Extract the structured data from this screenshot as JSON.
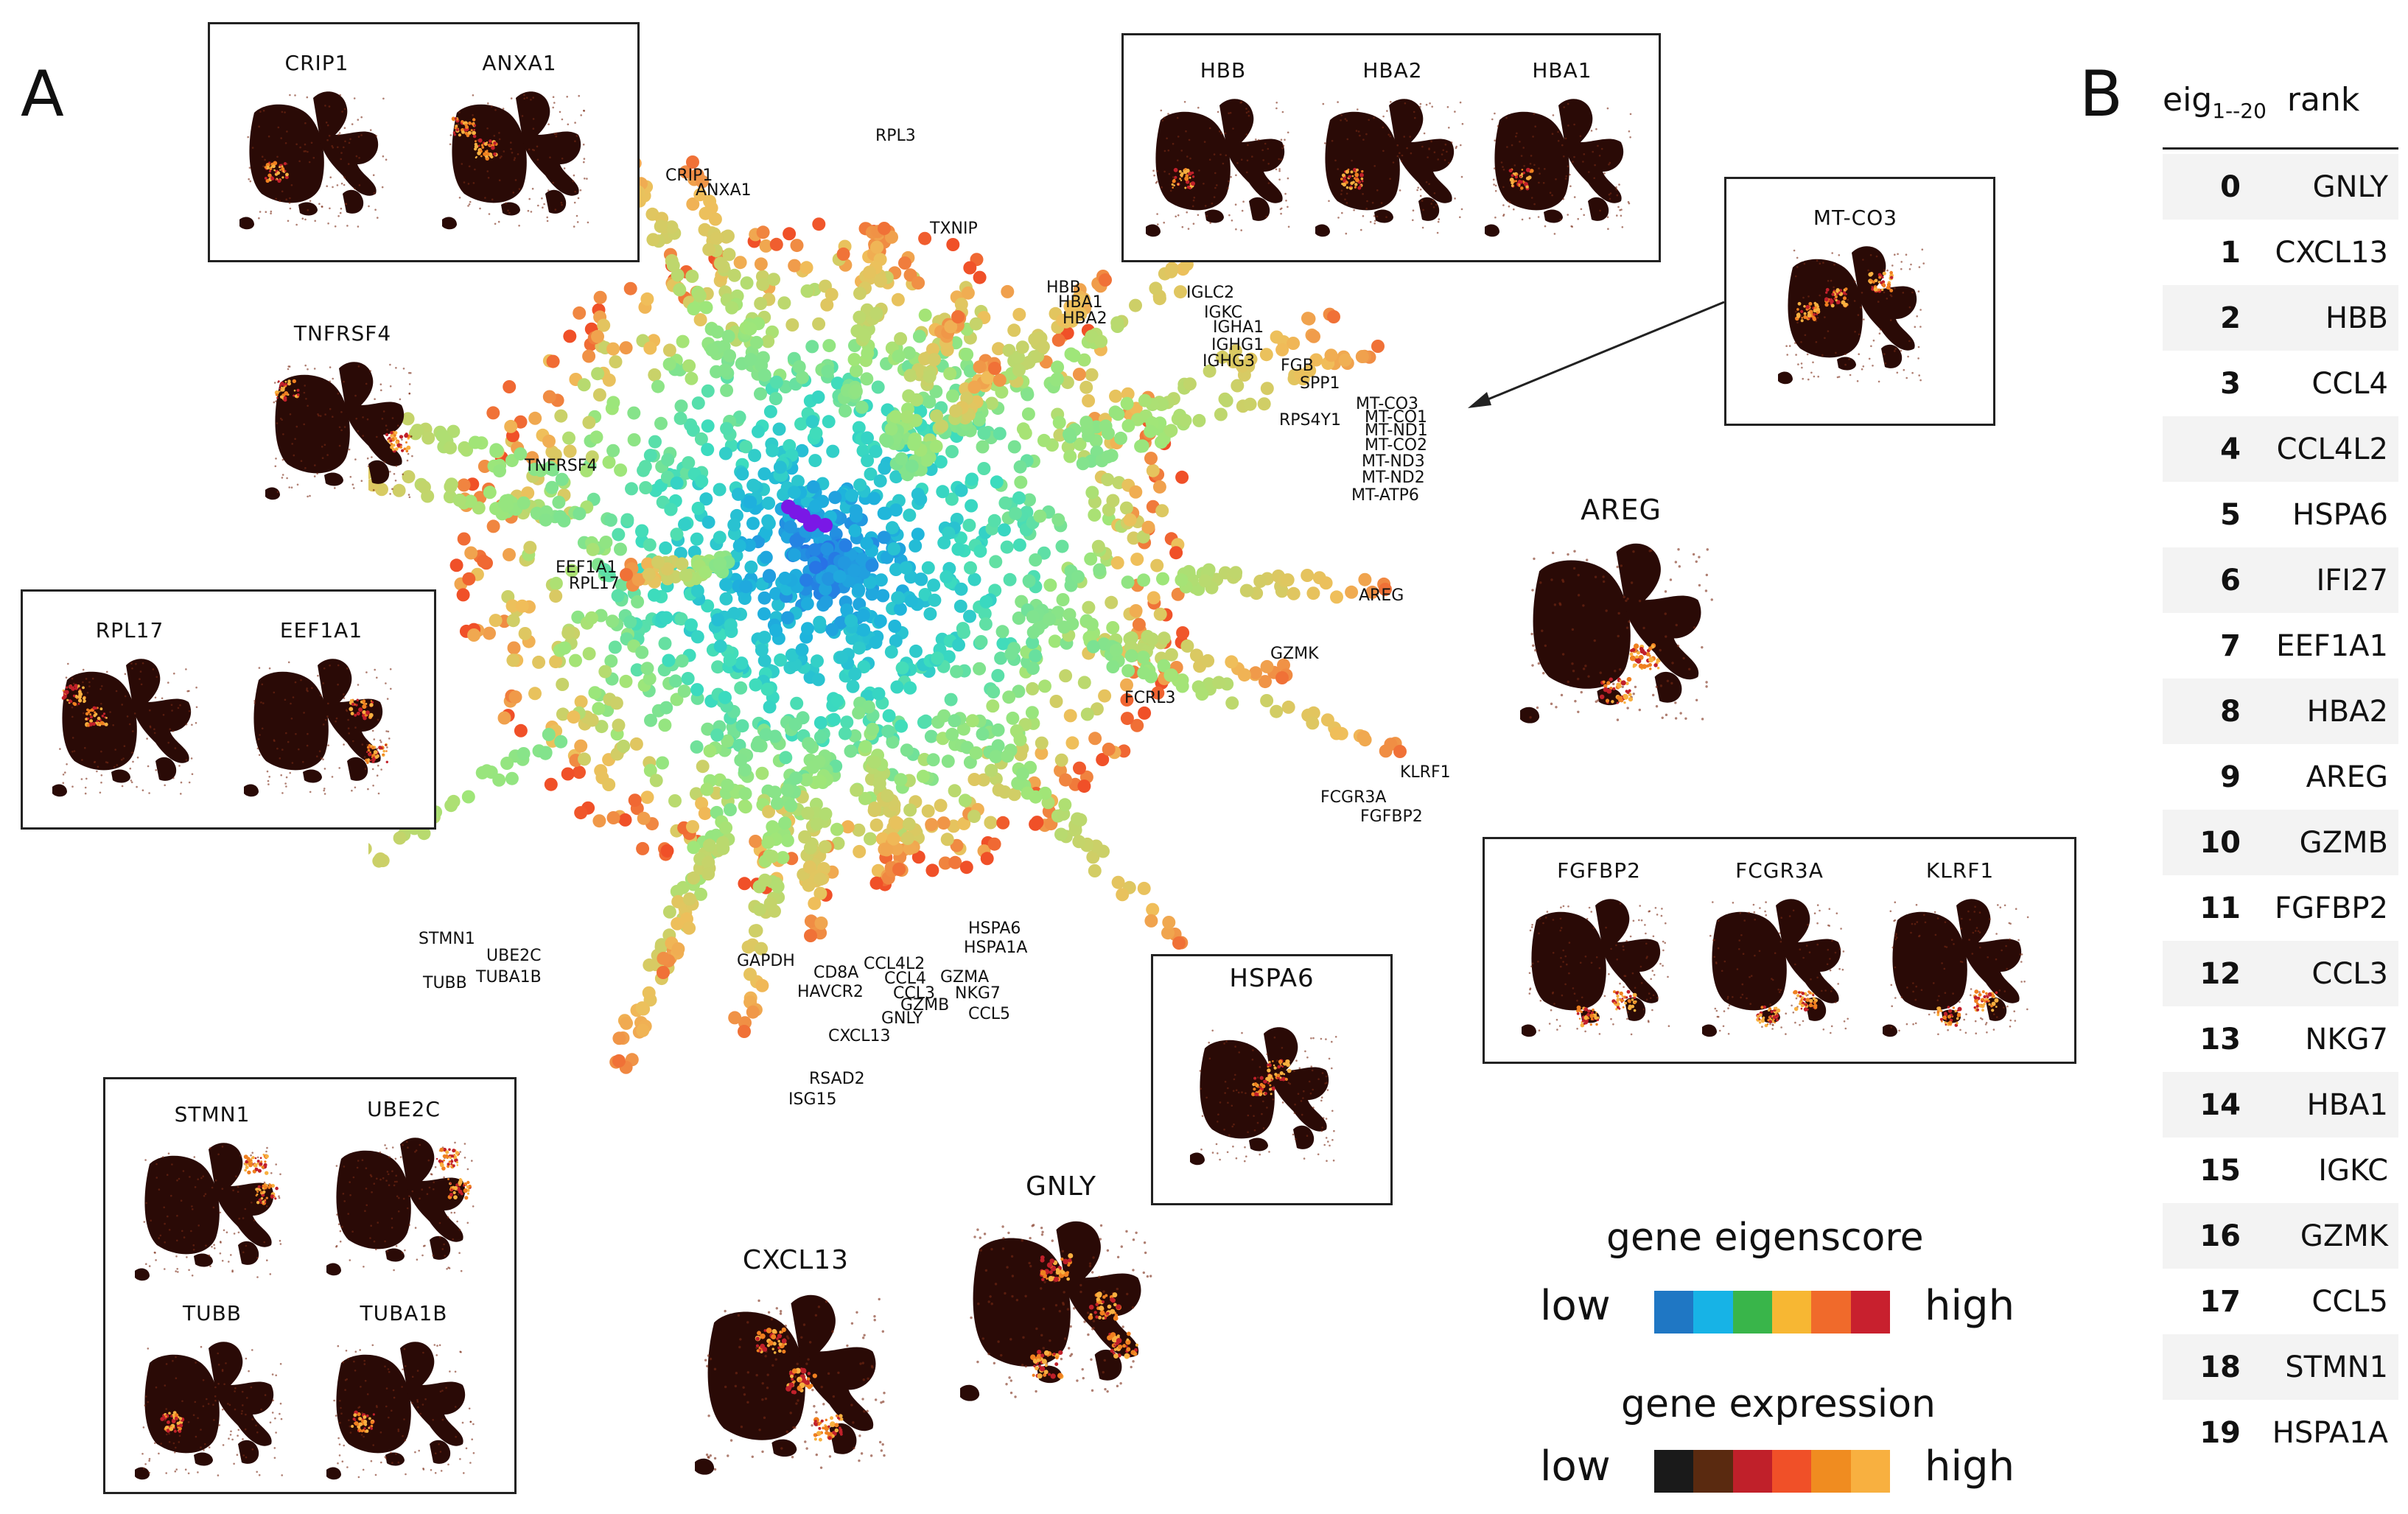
{
  "panel_labels": {
    "a": "A",
    "b": "B"
  },
  "colors": {
    "low": "#1f2ad8",
    "mid": "#2fd5c8",
    "high": "#f0a030",
    "top": "#e02010",
    "blob_dark": "#2a0a06",
    "blob_hot": "#f08020"
  },
  "inset_boxes": {
    "crip_anxa": [
      "CRIP1",
      "ANXA1"
    ],
    "hb": [
      "HBB",
      "HBA2",
      "HBA1"
    ],
    "mtco3": [
      "MT-CO3"
    ],
    "rpl_eef": [
      "RPL17",
      "EEF1A1"
    ],
    "fgf": [
      "FGFBP2",
      "FCGR3A",
      "KLRF1"
    ],
    "hspa6": [
      "HSPA6"
    ],
    "cell_cycle": [
      "STMN1",
      "UBE2C",
      "TUBB",
      "TUBA1B"
    ]
  },
  "free_plots": {
    "tnfrsf4": "TNFRSF4",
    "areg": "AREG",
    "cxcl13": "CXCL13",
    "gnly": "GNLY"
  },
  "scatter_labels": {
    "rpl3": "RPL3",
    "crip1": "CRIP1",
    "anxa1": "ANXA1",
    "txnip": "TXNIP",
    "hbb": "HBB",
    "hba1": "HBA1",
    "hba2": "HBA2",
    "iglc2": "IGLC2",
    "igkc": "IGKC",
    "igha1": "IGHA1",
    "ighg1": "IGHG1",
    "ighg3": "IGHG3",
    "fgb": "FGB",
    "spp1": "SPP1",
    "rps4y1": "RPS4Y1",
    "mtco3": "MT-CO3",
    "mtco1": "MT-CO1",
    "mtnd1": "MT-ND1",
    "mtco2": "MT-CO2",
    "mtnd3": "MT-ND3",
    "mtnd2": "MT-ND2",
    "mtatp6": "MT-ATP6",
    "tnfrsf4": "TNFRSF4",
    "eef1a1": "EEF1A1",
    "rpl17": "RPL17",
    "areg": "AREG",
    "gzmk": "GZMK",
    "fcrl3": "FCRL3",
    "klrf1": "KLRF1",
    "fcgr3a": "FCGR3A",
    "fgfbp2": "FGFBP2",
    "stmn1": "STMN1",
    "ube2c": "UBE2C",
    "tubb": "TUBB",
    "tuba1b": "TUBA1B",
    "hspa6": "HSPA6",
    "hspa1a": "HSPA1A",
    "gapdh": "GAPDH",
    "cd8a": "CD8A",
    "ccl4l2": "CCL4L2",
    "ccl4": "CCL4",
    "gzma": "GZMA",
    "havcr2": "HAVCR2",
    "ccl3": "CCL3",
    "nkg7": "NKG7",
    "gzmb": "GZMB",
    "gnly": "GNLY",
    "ccl5": "CCL5",
    "cxcl13": "CXCL13",
    "rsad2": "RSAD2",
    "isg15": "ISG15"
  },
  "table": {
    "header_main": "eig",
    "header_sub": "1--20",
    "header_rank": "rank",
    "rows": [
      {
        "idx": "0",
        "gene": "GNLY"
      },
      {
        "idx": "1",
        "gene": "CXCL13"
      },
      {
        "idx": "2",
        "gene": "HBB"
      },
      {
        "idx": "3",
        "gene": "CCL4"
      },
      {
        "idx": "4",
        "gene": "CCL4L2"
      },
      {
        "idx": "5",
        "gene": "HSPA6"
      },
      {
        "idx": "6",
        "gene": "IFI27"
      },
      {
        "idx": "7",
        "gene": "EEF1A1"
      },
      {
        "idx": "8",
        "gene": "HBA2"
      },
      {
        "idx": "9",
        "gene": "AREG"
      },
      {
        "idx": "10",
        "gene": "GZMB"
      },
      {
        "idx": "11",
        "gene": "FGFBP2"
      },
      {
        "idx": "12",
        "gene": "CCL3"
      },
      {
        "idx": "13",
        "gene": "NKG7"
      },
      {
        "idx": "14",
        "gene": "HBA1"
      },
      {
        "idx": "15",
        "gene": "IGKC"
      },
      {
        "idx": "16",
        "gene": "GZMK"
      },
      {
        "idx": "17",
        "gene": "CCL5"
      },
      {
        "idx": "18",
        "gene": "STMN1"
      },
      {
        "idx": "19",
        "gene": "HSPA1A"
      }
    ]
  },
  "legend": {
    "eigen_title": "gene eigenscore",
    "expr_title": "gene expression",
    "low": "low",
    "high": "high",
    "eigen_colors": [
      "#1f77c4",
      "#17b3e6",
      "#39b54a",
      "#f7b733",
      "#f06a2b",
      "#c8202e"
    ],
    "expr_colors": [
      "#1a1a1a",
      "#5a2a10",
      "#c0202a",
      "#f05028",
      "#f08c20",
      "#f8b040"
    ]
  }
}
